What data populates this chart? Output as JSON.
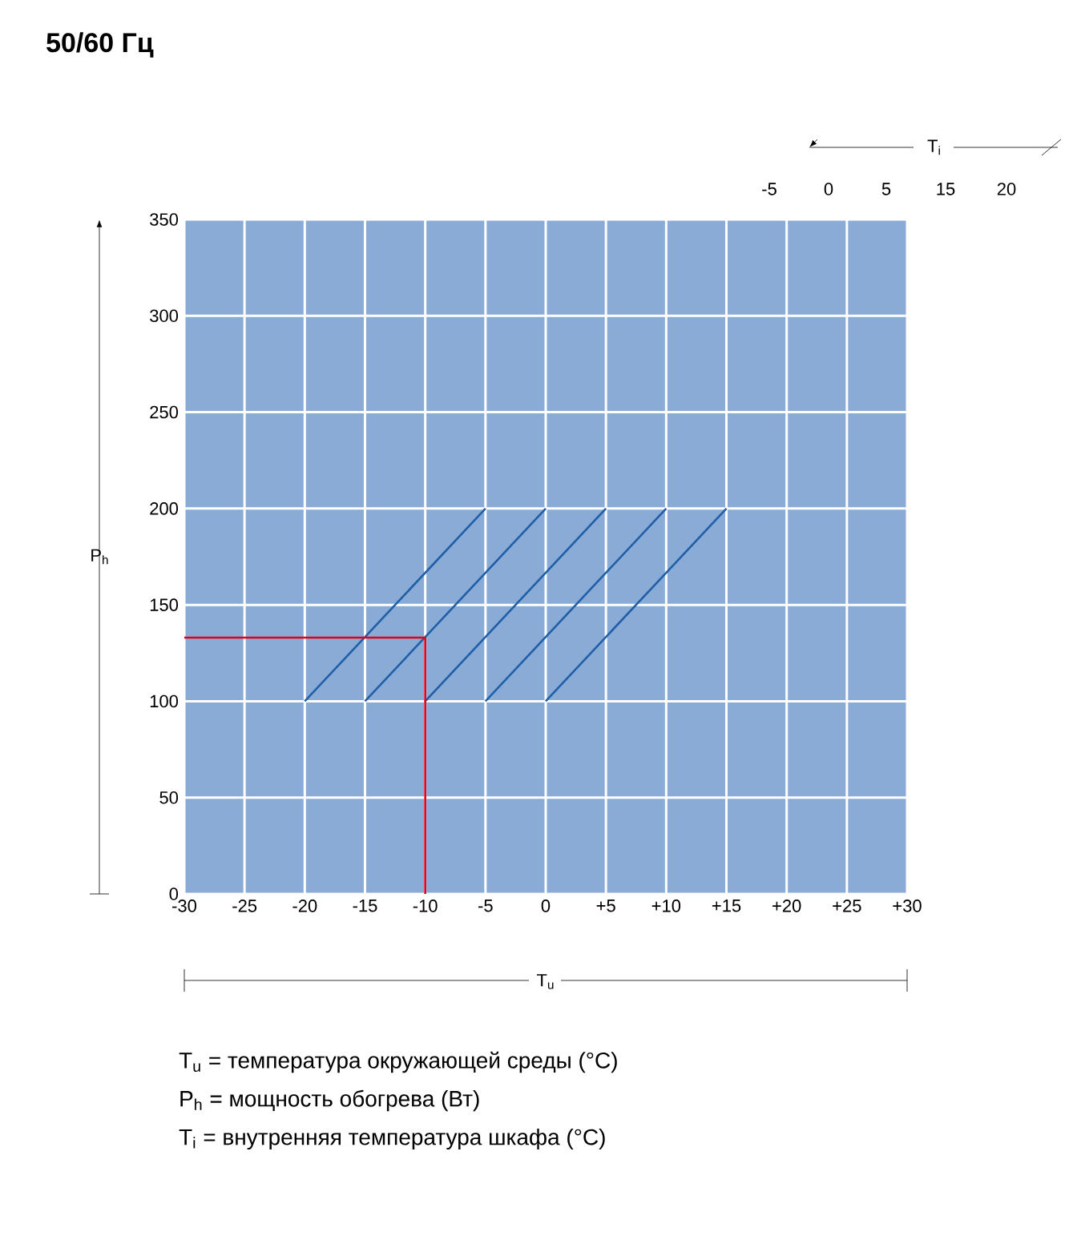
{
  "chart_data": {
    "type": "line",
    "title": "50/60 Гц",
    "xlabel": "T$_{u}$",
    "ylabel": "P$_{h}$",
    "xlim": [
      -30,
      30
    ],
    "ylim": [
      0,
      350
    ],
    "xticks": [
      -30,
      -25,
      -20,
      -15,
      -10,
      -5,
      0,
      {
        "value": 5,
        "label": "+5"
      },
      {
        "value": 10,
        "label": "+10"
      },
      {
        "value": 15,
        "label": "+15"
      },
      {
        "value": 20,
        "label": "+20"
      },
      {
        "value": 25,
        "label": "+25"
      },
      {
        "value": 30,
        "label": "+30"
      }
    ],
    "yticks": [
      0,
      50,
      100,
      150,
      200,
      250,
      300,
      350
    ],
    "grid": true,
    "marker": "none",
    "series": [
      {
        "color": "#1f5fa8",
        "x": [
          -20,
          -5
        ],
        "values": [
          100,
          200
        ]
      },
      {
        "color": "#1f5fa8",
        "x": [
          -15,
          0
        ],
        "values": [
          100,
          200
        ]
      },
      {
        "color": "#1f5fa8",
        "x": [
          -10,
          5
        ],
        "values": [
          100,
          200
        ]
      },
      {
        "color": "#1f5fa8",
        "x": [
          -5,
          10
        ],
        "values": [
          100,
          200
        ]
      },
      {
        "color": "#1f5fa8",
        "x": [
          0,
          15
        ],
        "values": [
          100,
          200
        ]
      },
      {
        "color": "#e2001a",
        "x": [
          -10,
          -10,
          -30
        ],
        "values": [
          0,
          133,
          133
        ]
      }
    ],
    "annotations": [
      "T$_{i}$",
      "-5",
      "0",
      "5",
      "15",
      "20",
      "T$_{u}$ = температура окружающей среды (°C)",
      "P$_{h}$ = мощность обогрева (Вт)",
      "T$_{i}$ = внутренняя температура шкафа (°C)"
    ]
  }
}
